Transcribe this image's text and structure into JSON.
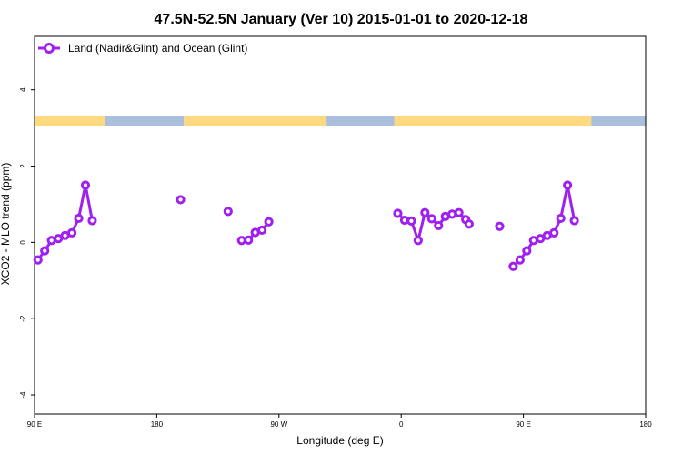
{
  "chart_data": {
    "type": "line",
    "title": "47.5N-52.5N January (Ver 10)   2015-01-01 to 2020-12-18",
    "xlabel": "Longitude (deg E)",
    "ylabel": "XCO2 - MLO trend (ppm)",
    "xlim": [
      90,
      540
    ],
    "ylim": [
      -4.5,
      5.4
    ],
    "x_ticks": [
      {
        "value": 90,
        "label": "90 E"
      },
      {
        "value": 180,
        "label": "180"
      },
      {
        "value": 270,
        "label": "90 W"
      },
      {
        "value": 360,
        "label": "0"
      },
      {
        "value": 450,
        "label": "90 E"
      },
      {
        "value": 540,
        "label": "180"
      }
    ],
    "y_ticks": [
      {
        "value": -4,
        "label": "-4"
      },
      {
        "value": -2,
        "label": "-2"
      },
      {
        "value": 0,
        "label": "0"
      },
      {
        "value": 2,
        "label": "2"
      },
      {
        "value": 4,
        "label": "4"
      }
    ],
    "legend": {
      "position": "top-left"
    },
    "land_ocean_strip": {
      "y_range": [
        3.05,
        3.3
      ],
      "land_color": "#ffd97f",
      "ocean_color": "#a9bfdc",
      "segments": [
        {
          "type": "land",
          "from": 90,
          "to": 142
        },
        {
          "type": "ocean",
          "from": 142,
          "to": 200
        },
        {
          "type": "land",
          "from": 200,
          "to": 305
        },
        {
          "type": "ocean",
          "from": 305,
          "to": 355
        },
        {
          "type": "land",
          "from": 355,
          "to": 500
        },
        {
          "type": "ocean",
          "from": 500,
          "to": 540
        }
      ]
    },
    "series": [
      {
        "name": "Land (Nadir&Glint) and Ocean (Glint)",
        "color": "#a020f0",
        "segments": [
          [
            [
              92.5,
              -0.46
            ],
            [
              97.5,
              -0.22
            ],
            [
              102.5,
              0.05
            ],
            [
              107.5,
              0.1
            ],
            [
              112.5,
              0.18
            ],
            [
              117.5,
              0.25
            ],
            [
              122.5,
              0.63
            ],
            [
              127.5,
              1.5
            ],
            [
              132.5,
              0.57
            ]
          ],
          [
            [
              197.5,
              1.12
            ]
          ],
          [
            [
              232.5,
              0.81
            ]
          ],
          [
            [
              242.5,
              0.05
            ],
            [
              247.5,
              0.06
            ],
            [
              252.5,
              0.26
            ],
            [
              257.5,
              0.32
            ],
            [
              262.5,
              0.54
            ]
          ],
          [
            [
              357.5,
              0.76
            ],
            [
              362.5,
              0.58
            ],
            [
              367.5,
              0.56
            ],
            [
              372.5,
              0.05
            ],
            [
              377.5,
              0.78
            ],
            [
              382.5,
              0.62
            ],
            [
              387.5,
              0.44
            ],
            [
              392.5,
              0.68
            ],
            [
              397.5,
              0.74
            ],
            [
              402.5,
              0.78
            ],
            [
              407.5,
              0.6
            ],
            [
              410.0,
              0.48
            ]
          ],
          [
            [
              432.5,
              0.42
            ]
          ],
          [
            [
              442.5,
              -0.63
            ],
            [
              447.5,
              -0.46
            ],
            [
              452.5,
              -0.22
            ],
            [
              457.5,
              0.05
            ],
            [
              462.5,
              0.1
            ],
            [
              467.5,
              0.18
            ],
            [
              472.5,
              0.25
            ],
            [
              477.5,
              0.63
            ],
            [
              482.5,
              1.5
            ],
            [
              487.5,
              0.57
            ]
          ]
        ]
      }
    ]
  }
}
